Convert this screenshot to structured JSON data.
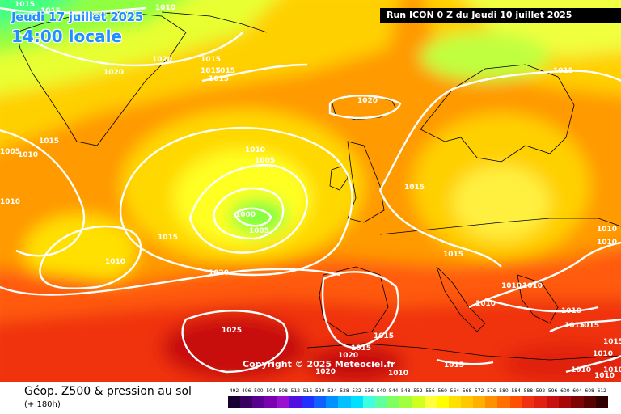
{
  "header": {
    "date": "Jeudi 17 juillet 2025",
    "time": "14:00 locale",
    "run": "Run ICON 0 Z du Jeudi 10 juillet 2025"
  },
  "copyright": "Copyright © 2025 Meteociel.fr",
  "footer": {
    "title": "Géop. Z500 & pression au sol",
    "subtitle": "(+ 180h)"
  },
  "legend": {
    "labels": [
      "492",
      "496",
      "500",
      "504",
      "508",
      "512",
      "516",
      "520",
      "524",
      "528",
      "532",
      "536",
      "540",
      "544",
      "548",
      "552",
      "556",
      "560",
      "564",
      "568",
      "572",
      "576",
      "580",
      "584",
      "588",
      "592",
      "596",
      "600",
      "604",
      "608",
      "612"
    ],
    "colors": [
      "#1a0030",
      "#3a0060",
      "#5a0090",
      "#7a00b0",
      "#9a10d0",
      "#5010e0",
      "#2030ff",
      "#1060ff",
      "#0090ff",
      "#00c0ff",
      "#00e0ff",
      "#40ffe0",
      "#60ffa0",
      "#80ff60",
      "#a0ff40",
      "#d0ff20",
      "#ffff40",
      "#ffff00",
      "#ffe000",
      "#ffc800",
      "#ffb000",
      "#ff9000",
      "#ff7000",
      "#ff5000",
      "#f03010",
      "#e02010",
      "#c81010",
      "#a80808",
      "#800404",
      "#580202",
      "#300000"
    ]
  },
  "isobars": [
    {
      "value": "1015",
      "label": "isobar-1015-nw"
    },
    {
      "value": "1010",
      "label": "isobar-1010-top"
    },
    {
      "value": "1015",
      "label": "isobar-1015-top"
    },
    {
      "value": "1020",
      "label": "isobar-1020-w"
    },
    {
      "value": "1020",
      "label": "isobar-1020-w2"
    },
    {
      "value": "1015",
      "label": "isobar-1015-green"
    },
    {
      "value": "1015",
      "label": "isobar-1015-green2"
    },
    {
      "value": "1015",
      "label": "isobar-1015-green3"
    },
    {
      "value": "1015",
      "label": "isobar-1015-green4"
    },
    {
      "value": "1020",
      "label": "isobar-1020-iceland"
    },
    {
      "value": "1015",
      "label": "isobar-1015-w"
    },
    {
      "value": "1005",
      "label": "isobar-1005-w"
    },
    {
      "value": "1010",
      "label": "isobar-1010-w"
    },
    {
      "value": "1010",
      "label": "isobar-1010-edge"
    },
    {
      "value": "1010",
      "label": "isobar-1010-low"
    },
    {
      "value": "1005",
      "label": "isobar-1005-low"
    },
    {
      "value": "1000",
      "label": "isobar-1000-low"
    },
    {
      "value": "1005",
      "label": "isobar-1005-low2"
    },
    {
      "value": "1015",
      "label": "isobar-1015-atl"
    },
    {
      "value": "1010",
      "label": "isobar-1010-atl"
    },
    {
      "value": "1020",
      "label": "isobar-1020-atl"
    },
    {
      "value": "1015",
      "label": "isobar-1015-scand"
    },
    {
      "value": "1015",
      "label": "isobar-1015-uk"
    },
    {
      "value": "1015",
      "label": "isobar-1015-europe"
    },
    {
      "value": "1010",
      "label": "isobar-1010-east"
    },
    {
      "value": "1010",
      "label": "isobar-1010-east2"
    },
    {
      "value": "1010",
      "label": "isobar-1010-balkan"
    },
    {
      "value": "1010",
      "label": "isobar-1010-balkan2"
    },
    {
      "value": "1010",
      "label": "isobar-1010-italy"
    },
    {
      "value": "1010",
      "label": "isobar-1010-greece"
    },
    {
      "value": "1015",
      "label": "isobar-1015-greece"
    },
    {
      "value": "1015",
      "label": "isobar-1015-greece2"
    },
    {
      "value": "1010",
      "label": "isobar-1010-far-east"
    },
    {
      "value": "1010",
      "label": "isobar-1010-far-east2"
    },
    {
      "value": "1025",
      "label": "isobar-1025-azores"
    },
    {
      "value": "1015",
      "label": "isobar-1015-iberia"
    },
    {
      "value": "1015",
      "label": "isobar-1015-iberia2"
    },
    {
      "value": "1020",
      "label": "isobar-1020-iberia"
    },
    {
      "value": "1020",
      "label": "isobar-1020-iberia2"
    },
    {
      "value": "1010",
      "label": "isobar-1010-africa"
    },
    {
      "value": "1015",
      "label": "isobar-1015-med"
    },
    {
      "value": "1010",
      "label": "isobar-1010-se"
    },
    {
      "value": "1015",
      "label": "isobar-1015-se"
    },
    {
      "value": "1010",
      "label": "isobar-1010-se2"
    }
  ]
}
